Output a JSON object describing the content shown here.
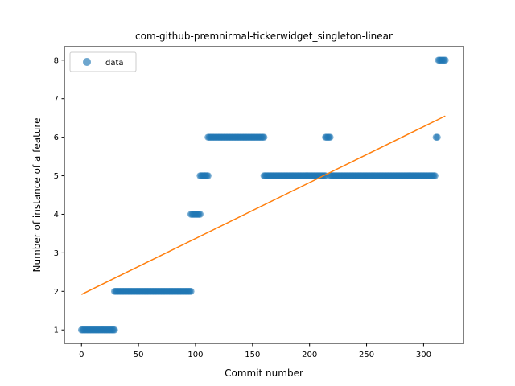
{
  "chart_data": {
    "type": "scatter",
    "title": "com-github-premnirmal-tickerwidget_singleton-linear",
    "xlabel": "Commit number",
    "ylabel": "Number of instance of a feature",
    "xlim": [
      -15,
      335
    ],
    "ylim": [
      0.65,
      8.35
    ],
    "xticks": [
      0,
      50,
      100,
      150,
      200,
      250,
      300
    ],
    "yticks": [
      1,
      2,
      3,
      4,
      5,
      6,
      7,
      8
    ],
    "grid": false,
    "legend": {
      "position": "top-left",
      "entries": [
        "data"
      ]
    },
    "colors": {
      "points": "#1f77b4",
      "fit_line": "#ff7f0e"
    },
    "series": [
      {
        "name": "data",
        "kind": "scatter",
        "segments": [
          {
            "x_start": 0,
            "x_end": 29,
            "y": 1
          },
          {
            "x_start": 29,
            "x_end": 96,
            "y": 2
          },
          {
            "x_start": 96,
            "x_end": 104,
            "y": 4
          },
          {
            "x_start": 104,
            "x_end": 111,
            "y": 5
          },
          {
            "x_start": 111,
            "x_end": 160,
            "y": 6
          },
          {
            "x_start": 160,
            "x_end": 214,
            "y": 5
          },
          {
            "x_start": 214,
            "x_end": 218,
            "y": 6
          },
          {
            "x_start": 218,
            "x_end": 310,
            "y": 5
          },
          {
            "x_start": 311,
            "x_end": 312,
            "y": 6
          },
          {
            "x_start": 313,
            "x_end": 319,
            "y": 8
          }
        ]
      },
      {
        "kind": "line",
        "points": [
          [
            0,
            1.92
          ],
          [
            319,
            6.55
          ]
        ]
      }
    ]
  }
}
